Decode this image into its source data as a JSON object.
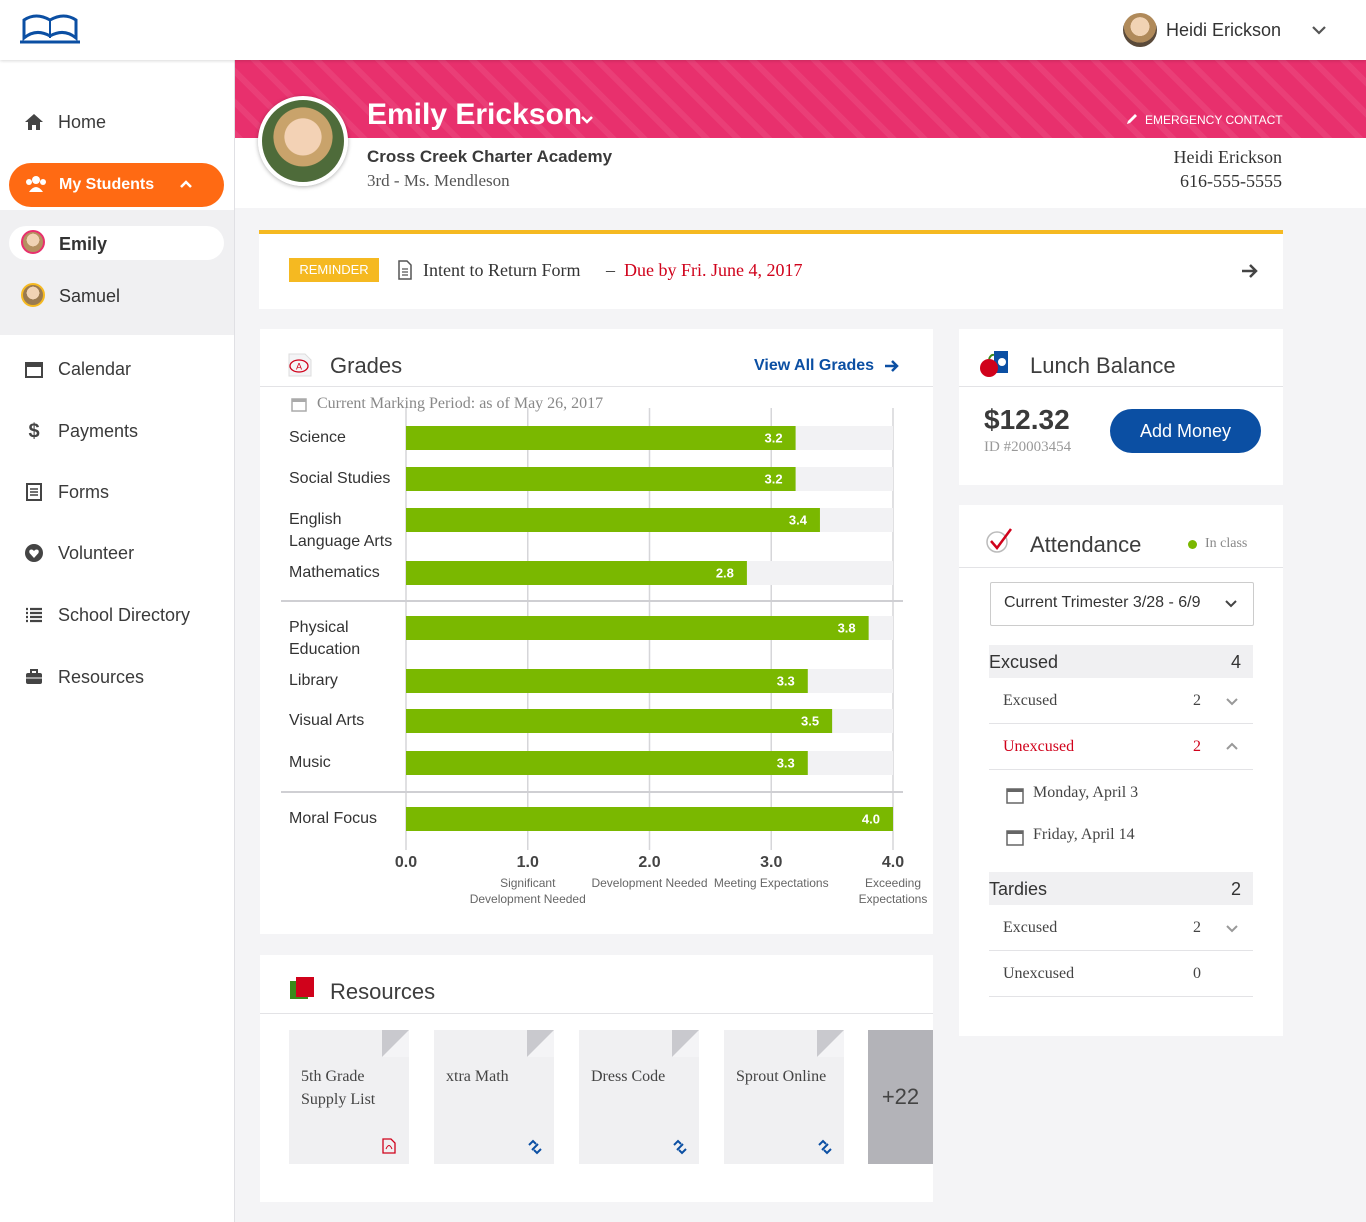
{
  "header": {
    "user_name": "Heidi Erickson"
  },
  "sidebar": {
    "home": "Home",
    "my_students": "My Students",
    "students": [
      "Emily",
      "Samuel"
    ],
    "nav": [
      "Calendar",
      "Payments",
      "Forms",
      "Volunteer",
      "School Directory",
      "Resources"
    ]
  },
  "student": {
    "name": "Emily Erickson",
    "emergency_label": "EMERGENCY CONTACT",
    "school": "Cross Creek Charter Academy",
    "class": "3rd - Ms. Mendleson",
    "contact_name": "Heidi Erickson",
    "contact_phone": "616-555-5555"
  },
  "reminder": {
    "tag": "REMINDER",
    "text": "Intent to Return Form",
    "separator": "–",
    "due": "Due by Fri. June 4, 2017"
  },
  "grades": {
    "title": "Grades",
    "link": "View All Grades",
    "period": "Current Marking Period: as of May 26, 2017"
  },
  "chart_data": {
    "type": "bar",
    "orientation": "horizontal",
    "categories": [
      "Science",
      "Social Studies",
      "English Language Arts",
      "Mathematics",
      "Physical Education",
      "Library",
      "Visual Arts",
      "Music",
      "Moral Focus"
    ],
    "values": [
      3.2,
      3.2,
      3.4,
      2.8,
      3.8,
      3.3,
      3.5,
      3.3,
      4.0
    ],
    "value_labels": [
      "3.2",
      "3.2",
      "3.4",
      "2.8",
      "3.8",
      "3.3",
      "3.5",
      "3.3",
      "4.0"
    ],
    "color": "#7ab800",
    "xlim": [
      0,
      4
    ],
    "xticks": [
      {
        "value": 0,
        "label": "0.0"
      },
      {
        "value": 1,
        "label": "1.0"
      },
      {
        "value": 2,
        "label": "2.0"
      },
      {
        "value": 3,
        "label": "3.0"
      },
      {
        "value": 4,
        "label": "4.0"
      }
    ],
    "xtick_descriptions": [
      null,
      "Significant Development Needed",
      "Development Needed",
      "Meeting Expectations",
      "Exceeding Expectations"
    ],
    "grid": true
  },
  "lunch": {
    "title": "Lunch Balance",
    "balance": "$12.32",
    "id": "ID #20003454",
    "button": "Add Money"
  },
  "attendance": {
    "title": "Attendance",
    "status": "In class",
    "period": "Current Trimester 3/28 - 6/9",
    "sections": [
      {
        "label": "Excused",
        "count": 4,
        "rows": [
          {
            "label": "Excused",
            "count": 2
          },
          {
            "label": "Unexcused",
            "count": 2,
            "dates": [
              "Monday, April 3",
              "Friday, April 14"
            ]
          }
        ]
      },
      {
        "label": "Tardies",
        "count": 2,
        "rows": [
          {
            "label": "Excused",
            "count": 2
          },
          {
            "label": "Unexcused",
            "count": 0
          }
        ]
      }
    ]
  },
  "resources": {
    "title": "Resources",
    "items": [
      "5th Grade Supply List",
      "xtra Math",
      "Dress Code",
      "Sprout Online"
    ],
    "more": "+22"
  }
}
